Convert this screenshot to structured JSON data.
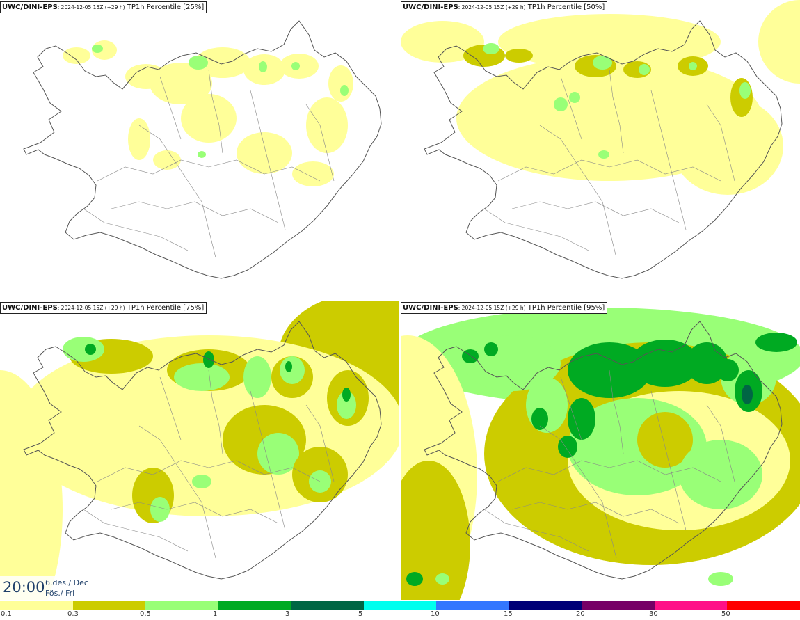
{
  "panels": [
    {
      "model": "UWC/DINI-EPS",
      "run": ": 2024-12-05 15Z (+29 h)",
      "field": "TP1h Percentile",
      "percentile": "[25%]"
    },
    {
      "model": "UWC/DINI-EPS",
      "run": ": 2024-12-05 15Z (+29 h)",
      "field": "TP1h Percentile",
      "percentile": "[50%]"
    },
    {
      "model": "UWC/DINI-EPS",
      "run": ": 2024-12-05 15Z (+29 h)",
      "field": "TP1h Percentile",
      "percentile": "[75%]"
    },
    {
      "model": "UWC/DINI-EPS",
      "run": ": 2024-12-05 15Z (+29 h)",
      "field": "TP1h Percentile",
      "percentile": "[95%]"
    }
  ],
  "valid_time": {
    "clock": "20:00",
    "date": "6.des./ Dec",
    "weekday": "Fös./ Fri"
  },
  "legend": {
    "bins": [
      {
        "from": "0.1",
        "color": "#ffff99"
      },
      {
        "from": "0.3",
        "color": "#cccc00"
      },
      {
        "from": "0.5",
        "color": "#99ff77"
      },
      {
        "from": "1",
        "color": "#00aa22"
      },
      {
        "from": "3",
        "color": "#006644"
      },
      {
        "from": "5",
        "color": "#00ffee"
      },
      {
        "from": "10",
        "color": "#3377ff"
      },
      {
        "from": "15",
        "color": "#000077"
      },
      {
        "from": "20",
        "color": "#770066"
      },
      {
        "from": "30",
        "color": "#ff1188"
      },
      {
        "from": "50",
        "color": "#ff0000"
      }
    ]
  },
  "map_colors": {
    "land_outline": "#555555",
    "background": "#ffffff"
  }
}
